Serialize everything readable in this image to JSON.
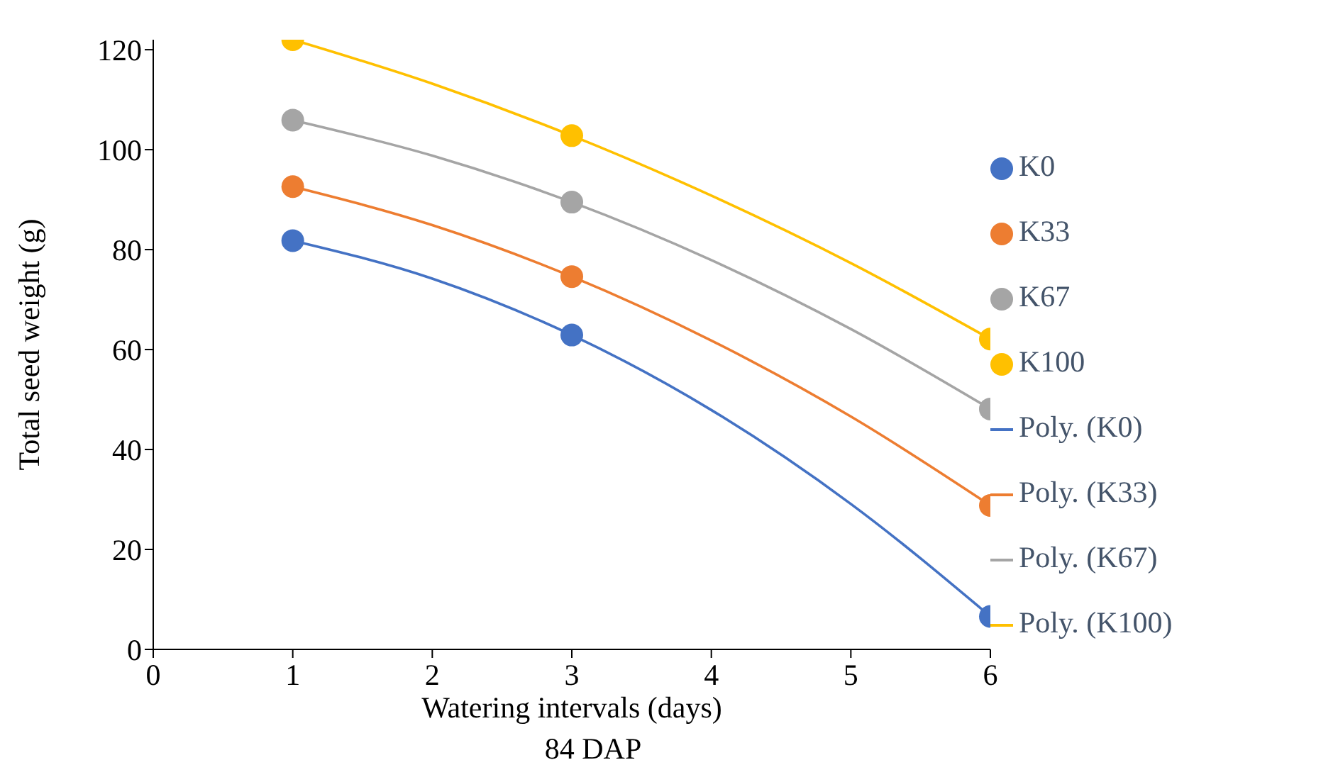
{
  "chart_data": {
    "type": "scatter",
    "xlabel": "Watering intervals (days)",
    "ylabel": "Total seed weight  (g)",
    "annotations": [
      "84 DAP"
    ],
    "xlim": [
      0,
      6
    ],
    "xticks": [
      0,
      1,
      2,
      3,
      4,
      5,
      6
    ],
    "ylim": [
      0,
      122
    ],
    "yticks": [
      0,
      20,
      40,
      60,
      80,
      100,
      120
    ],
    "grid": false,
    "legend": "right",
    "series": [
      {
        "name": "K0",
        "marker": "circle",
        "color": "#4472c4",
        "x": [
          1,
          3,
          6
        ],
        "values": [
          81.8,
          62.9,
          6.6
        ]
      },
      {
        "name": "K33",
        "marker": "circle",
        "color": "#ed7d31",
        "x": [
          1,
          3,
          6
        ],
        "values": [
          92.6,
          74.6,
          28.8
        ]
      },
      {
        "name": "K67",
        "marker": "circle",
        "color": "#a5a5a5",
        "x": [
          1,
          3,
          6
        ],
        "values": [
          105.9,
          89.5,
          48.1
        ]
      },
      {
        "name": "K100",
        "marker": "circle",
        "color": "#ffc000",
        "x": [
          1,
          3,
          6
        ],
        "values": [
          122,
          102.8,
          62.1
        ]
      },
      {
        "name": "Poly. (K0)",
        "type": "line",
        "marker": "none",
        "color": "#4472c4",
        "x": [
          1,
          2,
          3,
          4,
          5,
          6
        ],
        "values": [
          81.8,
          74.2,
          62.9,
          47.9,
          29.1,
          6.6
        ]
      },
      {
        "name": "Poly. (K33)",
        "type": "line",
        "marker": "none",
        "color": "#ed7d31",
        "x": [
          1,
          2,
          3,
          4,
          5,
          6
        ],
        "values": [
          92.6,
          84.9,
          74.6,
          61.8,
          46.6,
          28.8
        ]
      },
      {
        "name": "Poly. (K67)",
        "type": "line",
        "marker": "none",
        "color": "#a5a5a5",
        "x": [
          1,
          2,
          3,
          4,
          5,
          6
        ],
        "values": [
          105.9,
          98.8,
          89.5,
          77.9,
          64.1,
          48.1
        ]
      },
      {
        "name": "Poly. (K100)",
        "type": "line",
        "marker": "none",
        "color": "#ffc000",
        "x": [
          1,
          2,
          3,
          4,
          5,
          6
        ],
        "values": [
          122,
          113.2,
          102.8,
          90.8,
          77.3,
          62.1
        ]
      }
    ]
  }
}
